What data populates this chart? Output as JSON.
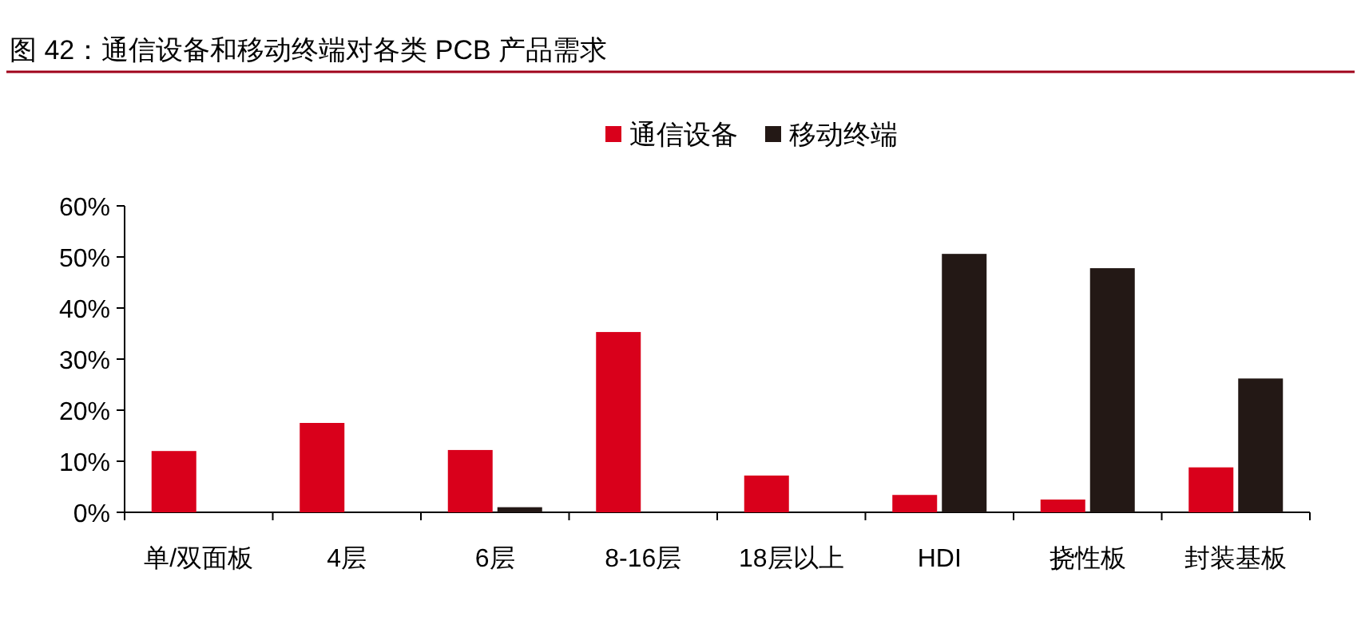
{
  "chart_data": {
    "type": "bar",
    "title": "图 42：通信设备和移动终端对各类 PCB 产品需求",
    "categories": [
      "单/双面板",
      "4层",
      "6层",
      "8-16层",
      "18层以上",
      "HDI",
      "挠性板",
      "封装基板"
    ],
    "series": [
      {
        "name": "通信设备",
        "color": "#d9001b",
        "values": [
          12,
          17.5,
          12.2,
          35.3,
          7.2,
          3.4,
          2.5,
          8.8
        ]
      },
      {
        "name": "移动终端",
        "color": "#231815",
        "values": [
          0,
          0,
          1,
          0,
          0,
          50.6,
          47.8,
          26.2
        ]
      }
    ],
    "ylim": [
      0,
      60
    ],
    "yticks": [
      {
        "value": 0,
        "label": "0%"
      },
      {
        "value": 10,
        "label": "10%"
      },
      {
        "value": 20,
        "label": "20%"
      },
      {
        "value": 30,
        "label": "30%"
      },
      {
        "value": 40,
        "label": "40%"
      },
      {
        "value": 50,
        "label": "50%"
      },
      {
        "value": 60,
        "label": "60%"
      }
    ],
    "legend": "top",
    "grid": false
  }
}
